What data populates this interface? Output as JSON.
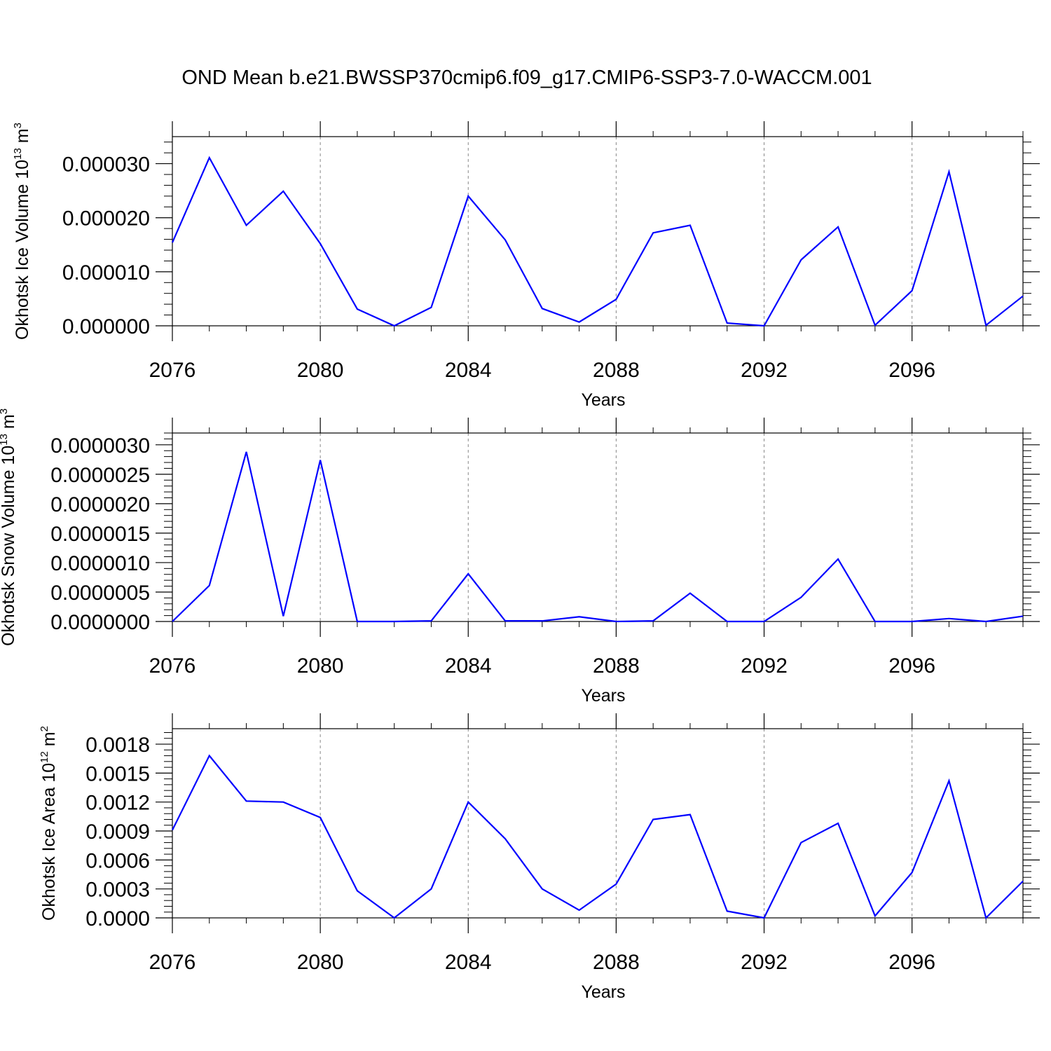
{
  "figure": {
    "title": "OND Mean b.e21.BWSSP370cmip6.f09_g17.CMIP6-SSP3-7.0-WACCM.001",
    "line_color": "#0000ff"
  },
  "chart_data": [
    {
      "type": "line",
      "title": "",
      "xlabel": "Years",
      "ylabel": "Okhotsk Ice Volume 10",
      "ylabel_exponent": "13",
      "ylabel_unit": "m",
      "ylabel_unit_exponent": "3",
      "xlim": [
        2076,
        2099
      ],
      "ylim": [
        0,
        3.5e-05
      ],
      "xticks": [
        2076,
        2080,
        2084,
        2088,
        2092,
        2096
      ],
      "xtick_labels": [
        "2076",
        "2080",
        "2084",
        "2088",
        "2092",
        "2096"
      ],
      "yticks": [
        0,
        1e-05,
        2e-05,
        3e-05
      ],
      "ytick_labels": [
        "0.000000",
        "0.000010",
        "0.000020",
        "0.000030"
      ],
      "grid": "vertical dashed at major x ticks",
      "series": [
        {
          "x": [
            2076,
            2077,
            2078,
            2079,
            2080,
            2081,
            2082,
            2083,
            2084,
            2085,
            2086,
            2087,
            2088,
            2089,
            2090,
            2091,
            2092,
            2093,
            2094,
            2095,
            2096,
            2097,
            2098,
            2099
          ],
          "values": [
            1.54e-05,
            3.11e-05,
            1.86e-05,
            2.49e-05,
            1.52e-05,
            3.1e-06,
            0.0,
            3.4e-06,
            2.4e-05,
            1.59e-05,
            3.2e-06,
            7e-07,
            4.9e-06,
            1.72e-05,
            1.86e-05,
            5e-07,
            0.0,
            1.22e-05,
            1.83e-05,
            1e-07,
            6.5e-06,
            2.85e-05,
            1e-07,
            5.5e-06
          ]
        }
      ]
    },
    {
      "type": "line",
      "title": "",
      "xlabel": "Years",
      "ylabel": "Okhotsk Snow Volume 10",
      "ylabel_exponent": "13",
      "ylabel_unit": "m",
      "ylabel_unit_exponent": "3",
      "xlim": [
        2076,
        2099
      ],
      "ylim": [
        0,
        3.2e-06
      ],
      "xticks": [
        2076,
        2080,
        2084,
        2088,
        2092,
        2096
      ],
      "xtick_labels": [
        "2076",
        "2080",
        "2084",
        "2088",
        "2092",
        "2096"
      ],
      "yticks": [
        0,
        5e-07,
        1e-06,
        1.5e-06,
        2e-06,
        2.5e-06,
        3e-06
      ],
      "ytick_labels": [
        "0.0000000",
        "0.0000005",
        "0.0000010",
        "0.0000015",
        "0.0000020",
        "0.0000025",
        "0.0000030"
      ],
      "grid": "vertical dashed at major x ticks",
      "series": [
        {
          "x": [
            2076,
            2077,
            2078,
            2079,
            2080,
            2081,
            2082,
            2083,
            2084,
            2085,
            2086,
            2087,
            2088,
            2089,
            2090,
            2091,
            2092,
            2093,
            2094,
            2095,
            2096,
            2097,
            2098,
            2099
          ],
          "values": [
            0.0,
            6.1e-07,
            2.88e-06,
            9e-08,
            2.74e-06,
            0.0,
            0.0,
            1e-08,
            8.1e-07,
            1e-08,
            1e-08,
            8e-08,
            0.0,
            1e-08,
            4.8e-07,
            0.0,
            0.0,
            4.1e-07,
            1.06e-06,
            0.0,
            0.0,
            5e-08,
            0.0,
            9e-08
          ]
        }
      ]
    },
    {
      "type": "line",
      "title": "",
      "xlabel": "Years",
      "ylabel": "Okhotsk Ice Area 10",
      "ylabel_exponent": "12",
      "ylabel_unit": "m",
      "ylabel_unit_exponent": "2",
      "xlim": [
        2076,
        2099
      ],
      "ylim": [
        0,
        0.00196
      ],
      "xticks": [
        2076,
        2080,
        2084,
        2088,
        2092,
        2096
      ],
      "xtick_labels": [
        "2076",
        "2080",
        "2084",
        "2088",
        "2092",
        "2096"
      ],
      "yticks": [
        0,
        0.0003,
        0.0006,
        0.0009,
        0.0012,
        0.0015,
        0.0018
      ],
      "ytick_labels": [
        "0.0000",
        "0.0003",
        "0.0006",
        "0.0009",
        "0.0012",
        "0.0015",
        "0.0018"
      ],
      "grid": "vertical dashed at major x ticks",
      "series": [
        {
          "x": [
            2076,
            2077,
            2078,
            2079,
            2080,
            2081,
            2082,
            2083,
            2084,
            2085,
            2086,
            2087,
            2088,
            2089,
            2090,
            2091,
            2092,
            2093,
            2094,
            2095,
            2096,
            2097,
            2098,
            2099
          ],
          "values": [
            0.00091,
            0.00168,
            0.00121,
            0.0012,
            0.00104,
            0.00028,
            0.0,
            0.0003,
            0.0012,
            0.00082,
            0.0003,
            8e-05,
            0.00035,
            0.00102,
            0.00107,
            7e-05,
            0.0,
            0.00078,
            0.00098,
            2e-05,
            0.00047,
            0.00142,
            0.0,
            0.00038
          ]
        }
      ]
    }
  ]
}
